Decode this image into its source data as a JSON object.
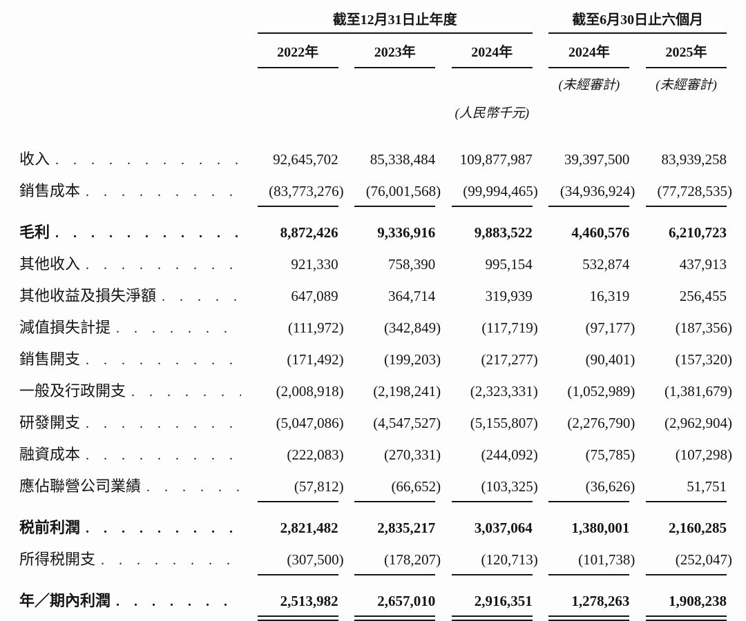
{
  "table": {
    "groups": [
      {
        "title": "截至12月31日止年度",
        "columns": [
          "2022年",
          "2023年",
          "2024年"
        ]
      },
      {
        "title": "截至6月30日止六個月",
        "columns": [
          "2024年",
          "2025年"
        ]
      }
    ],
    "notes": {
      "unaudited": "(未經審計)",
      "currency": "(人民幣千元)"
    },
    "rows": [
      {
        "label": "收入",
        "values": [
          "92,645,702",
          "85,338,484",
          "109,877,987",
          "39,397,500",
          "83,939,258"
        ],
        "style": "normal",
        "rule": "none"
      },
      {
        "label": "銷售成本",
        "values": [
          "(83,773,276)",
          "(76,001,568)",
          "(99,994,465)",
          "(34,936,924)",
          "(77,728,535)"
        ],
        "style": "normal",
        "rule": "single"
      },
      {
        "label": "毛利",
        "values": [
          "8,872,426",
          "9,336,916",
          "9,883,522",
          "4,460,576",
          "6,210,723"
        ],
        "style": "bold",
        "rule": "none",
        "section_gap": true
      },
      {
        "label": "其他收入",
        "values": [
          "921,330",
          "758,390",
          "995,154",
          "532,874",
          "437,913"
        ],
        "style": "normal",
        "rule": "none"
      },
      {
        "label": "其他收益及損失淨額",
        "values": [
          "647,089",
          "364,714",
          "319,939",
          "16,319",
          "256,455"
        ],
        "style": "normal",
        "rule": "none"
      },
      {
        "label": "減值損失計提",
        "values": [
          "(111,972)",
          "(342,849)",
          "(117,719)",
          "(97,177)",
          "(187,356)"
        ],
        "style": "normal",
        "rule": "none"
      },
      {
        "label": "銷售開支",
        "values": [
          "(171,492)",
          "(199,203)",
          "(217,277)",
          "(90,401)",
          "(157,320)"
        ],
        "style": "normal",
        "rule": "none"
      },
      {
        "label": "一般及行政開支",
        "values": [
          "(2,008,918)",
          "(2,198,241)",
          "(2,323,331)",
          "(1,052,989)",
          "(1,381,679)"
        ],
        "style": "normal",
        "rule": "none"
      },
      {
        "label": "研發開支",
        "values": [
          "(5,047,086)",
          "(4,547,527)",
          "(5,155,807)",
          "(2,276,790)",
          "(2,962,904)"
        ],
        "style": "normal",
        "rule": "none"
      },
      {
        "label": "融資成本",
        "values": [
          "(222,083)",
          "(270,331)",
          "(244,092)",
          "(75,785)",
          "(107,298)"
        ],
        "style": "normal",
        "rule": "none"
      },
      {
        "label": "應佔聯營公司業績",
        "values": [
          "(57,812)",
          "(66,652)",
          "(103,325)",
          "(36,626)",
          "51,751"
        ],
        "style": "normal",
        "rule": "single"
      },
      {
        "label": "税前利潤",
        "values": [
          "2,821,482",
          "2,835,217",
          "3,037,064",
          "1,380,001",
          "2,160,285"
        ],
        "style": "bold",
        "rule": "none",
        "section_gap": true
      },
      {
        "label": "所得税開支",
        "values": [
          "(307,500)",
          "(178,207)",
          "(120,713)",
          "(101,738)",
          "(252,047)"
        ],
        "style": "normal",
        "rule": "single"
      },
      {
        "label": "年／期內利潤",
        "values": [
          "2,513,982",
          "2,657,010",
          "2,916,351",
          "1,278,263",
          "1,908,238"
        ],
        "style": "bold",
        "rule": "double",
        "section_gap": true
      }
    ]
  }
}
